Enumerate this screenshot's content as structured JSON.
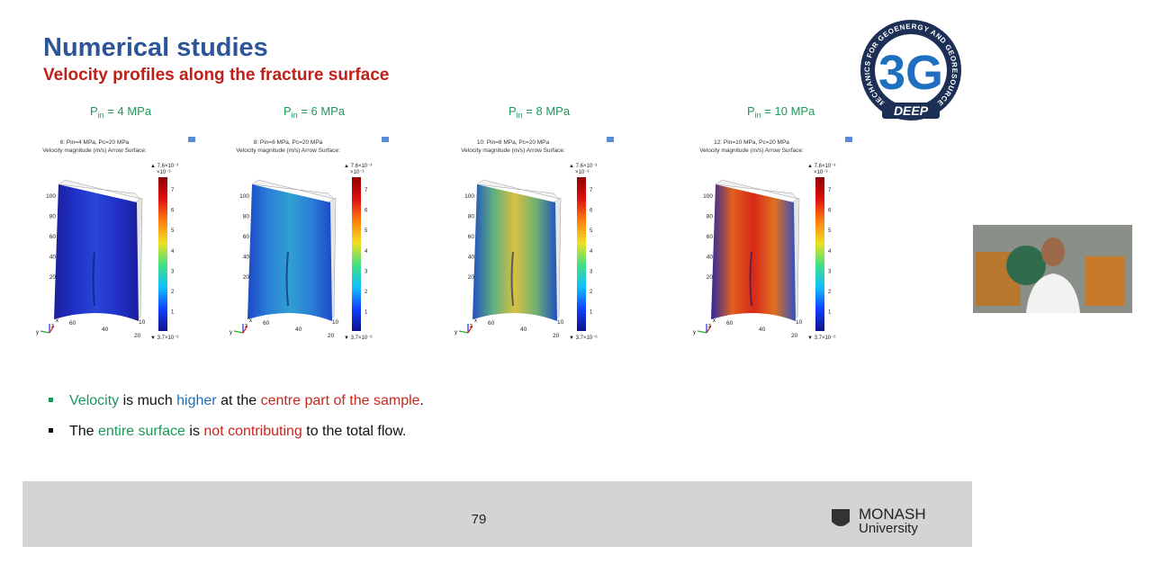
{
  "header": {
    "title": "Numerical studies",
    "subtitle": "Velocity profiles along the fracture surface"
  },
  "logo": {
    "ring": "GEOMECHANICS FOR GEOENERGY AND GEORESOURCES",
    "mark": "3G",
    "band": "DEEP"
  },
  "panels": [
    {
      "label_main": "P",
      "label_sub": "in",
      "label_rest": " = 4 MPa",
      "plot_title": "6: Pin=4 MPa, Pc=20 MPa"
    },
    {
      "label_main": "P",
      "label_sub": "in",
      "label_rest": " = 6 MPa",
      "plot_title": "8: Pin=6 MPa, Pc=20 MPa"
    },
    {
      "label_main": "P",
      "label_sub": "in",
      "label_rest": " = 8 MPa",
      "plot_title": "10: Pin=8 MPa, Pc=20 MPa"
    },
    {
      "label_main": "P",
      "label_sub": "in",
      "label_rest": " = 10 MPa",
      "plot_title": "12: Pin=10 MPa, Pc=20 MPa"
    }
  ],
  "plot_common": {
    "subtitle": "Velocity magnitude (m/s)  Arrow Surface:",
    "colorbar_max": "▲ 7.6×10⁻³",
    "colorbar_scale": "×10⁻³",
    "colorbar_ticks": [
      "7",
      "6",
      "5",
      "4",
      "3",
      "2",
      "1"
    ],
    "colorbar_min": "▼ 3.7×10⁻⁶",
    "y_ticks": [
      "100",
      "80",
      "60",
      "40",
      "20"
    ],
    "x_ticks": [
      "60",
      "40",
      "20"
    ],
    "z_tick": "10",
    "axis_x": "x",
    "axis_y": "y",
    "axis_z": "z"
  },
  "bullets": [
    [
      {
        "text": "Velocity",
        "color": "#1a9a5a"
      },
      {
        "text": " is much ",
        "color": "#111111"
      },
      {
        "text": "higher",
        "color": "#1f6fb5"
      },
      {
        "text": " at the ",
        "color": "#111111"
      },
      {
        "text": "centre part of the sample",
        "color": "#c8281e"
      },
      {
        "text": ".",
        "color": "#111111"
      }
    ],
    [
      {
        "text": "The ",
        "color": "#111111"
      },
      {
        "text": "entire surface",
        "color": "#1a9a5a"
      },
      {
        "text": " is ",
        "color": "#111111"
      },
      {
        "text": "not contributing",
        "color": "#c8281e"
      },
      {
        "text": " to the total flow.",
        "color": "#111111"
      }
    ]
  ],
  "footer": {
    "page": "79",
    "brand1": "MONASH",
    "brand2": "University"
  }
}
